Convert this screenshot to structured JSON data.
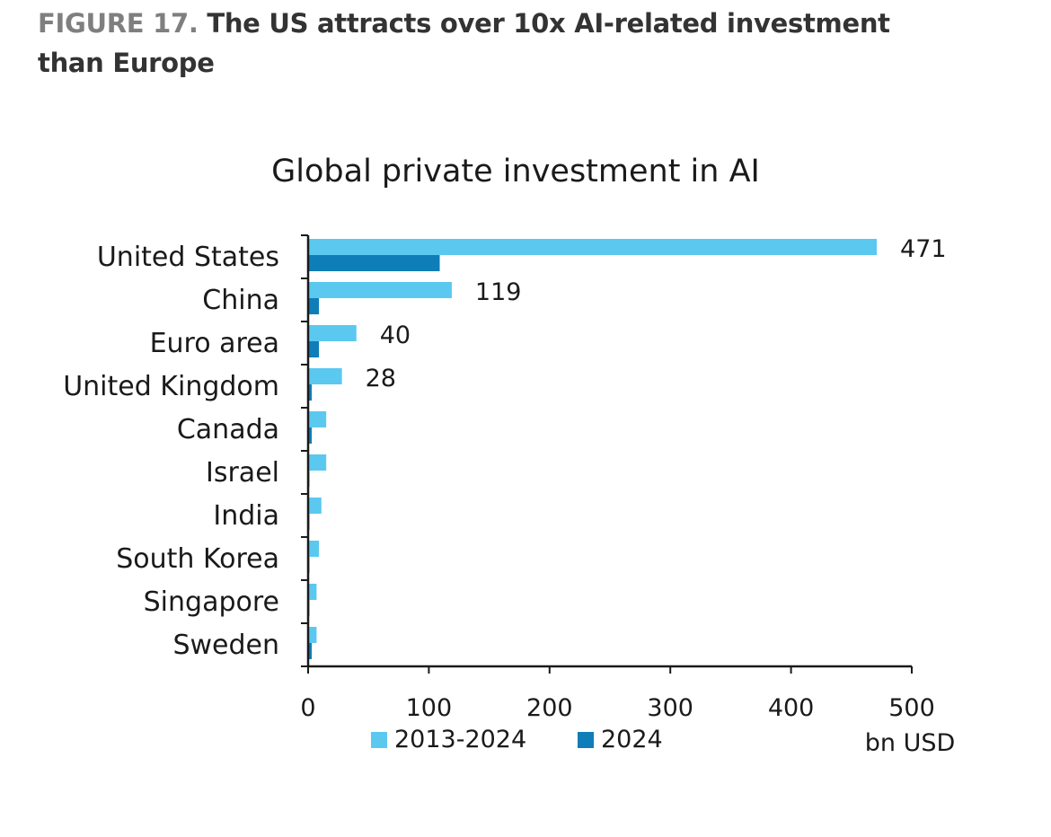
{
  "heading": {
    "label": "FIGURE 17.",
    "title": "The US attracts over 10x AI-related investment than Europe"
  },
  "colors": {
    "series_2013_2024": "#5bc8f0",
    "series_2024": "#0f7db8",
    "axis": "#1a1a1a",
    "text": "#1a1a1a"
  },
  "chart_data": {
    "type": "bar",
    "orientation": "horizontal",
    "title": "Global private investment in AI",
    "xlabel": "",
    "ylabel": "",
    "unit_label": "bn USD",
    "categories": [
      "United States",
      "China",
      "Euro area",
      "United Kingdom",
      "Canada",
      "Israel",
      "India",
      "South Korea",
      "Singapore",
      "Sweden"
    ],
    "series": [
      {
        "name": "2013-2024",
        "values": [
          471,
          119,
          40,
          28,
          15,
          15,
          11,
          9,
          7,
          7
        ],
        "data_labels": [
          "471",
          "119",
          "40",
          "28",
          "",
          "",
          "",
          "",
          "",
          ""
        ]
      },
      {
        "name": "2024",
        "values": [
          109,
          9,
          9,
          3,
          3,
          1,
          1,
          1,
          1,
          3
        ],
        "data_labels": [
          "",
          "",
          "",
          "",
          "",
          "",
          "",
          "",
          "",
          ""
        ]
      }
    ],
    "xlim": [
      0,
      500
    ],
    "xticks": [
      0,
      100,
      200,
      300,
      400,
      500
    ],
    "xtick_labels": [
      "0",
      "100",
      "200",
      "300",
      "400",
      "500"
    ],
    "grid": false,
    "legend_position": "bottom"
  }
}
